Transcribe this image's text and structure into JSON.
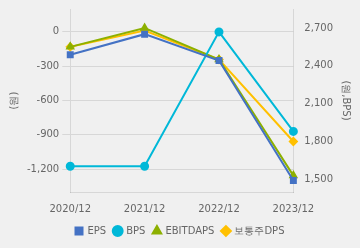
{
  "chart_data": {
    "type": "line",
    "categories": [
      "2020/12",
      "2021/12",
      "2022/12",
      "2023/12"
    ],
    "series": [
      {
        "name": "EPS",
        "color": "#4472c4",
        "marker": "square",
        "axis": "y",
        "values": [
          -200,
          -20,
          -250,
          -1300
        ]
      },
      {
        "name": "BPS",
        "color": "#00b8d8",
        "marker": "circle",
        "axis": "y",
        "values": [
          -1175,
          -1175,
          0,
          -870
        ]
      },
      {
        "name": "EBITDAPS",
        "color": "#8db000",
        "marker": "triangle",
        "axis": "y2",
        "values": [
          2550,
          2700,
          2450,
          1530
        ]
      },
      {
        "name": "보통주DPS",
        "color": "#ffc000",
        "marker": "diamond",
        "axis": "y2",
        "values": [
          2550,
          2680,
          2450,
          1800
        ]
      }
    ],
    "ylabel": "(원)",
    "y2label": "(원,BPS)",
    "ylim": [
      -1400,
      200
    ],
    "yticks": [
      0,
      -300,
      -600,
      -900,
      {
        "value": -1200,
        "label": "-1,200"
      }
    ],
    "y2lim": [
      1400,
      2850
    ],
    "y2ticks": [
      {
        "value": 1500,
        "label": "1,500"
      },
      {
        "value": 1800,
        "label": "1,800"
      },
      {
        "value": 2100,
        "label": "2,100"
      },
      {
        "value": 2400,
        "label": "2,400"
      },
      {
        "value": 2700,
        "label": "2,700"
      }
    ],
    "grid": true,
    "legend": "bottom"
  }
}
